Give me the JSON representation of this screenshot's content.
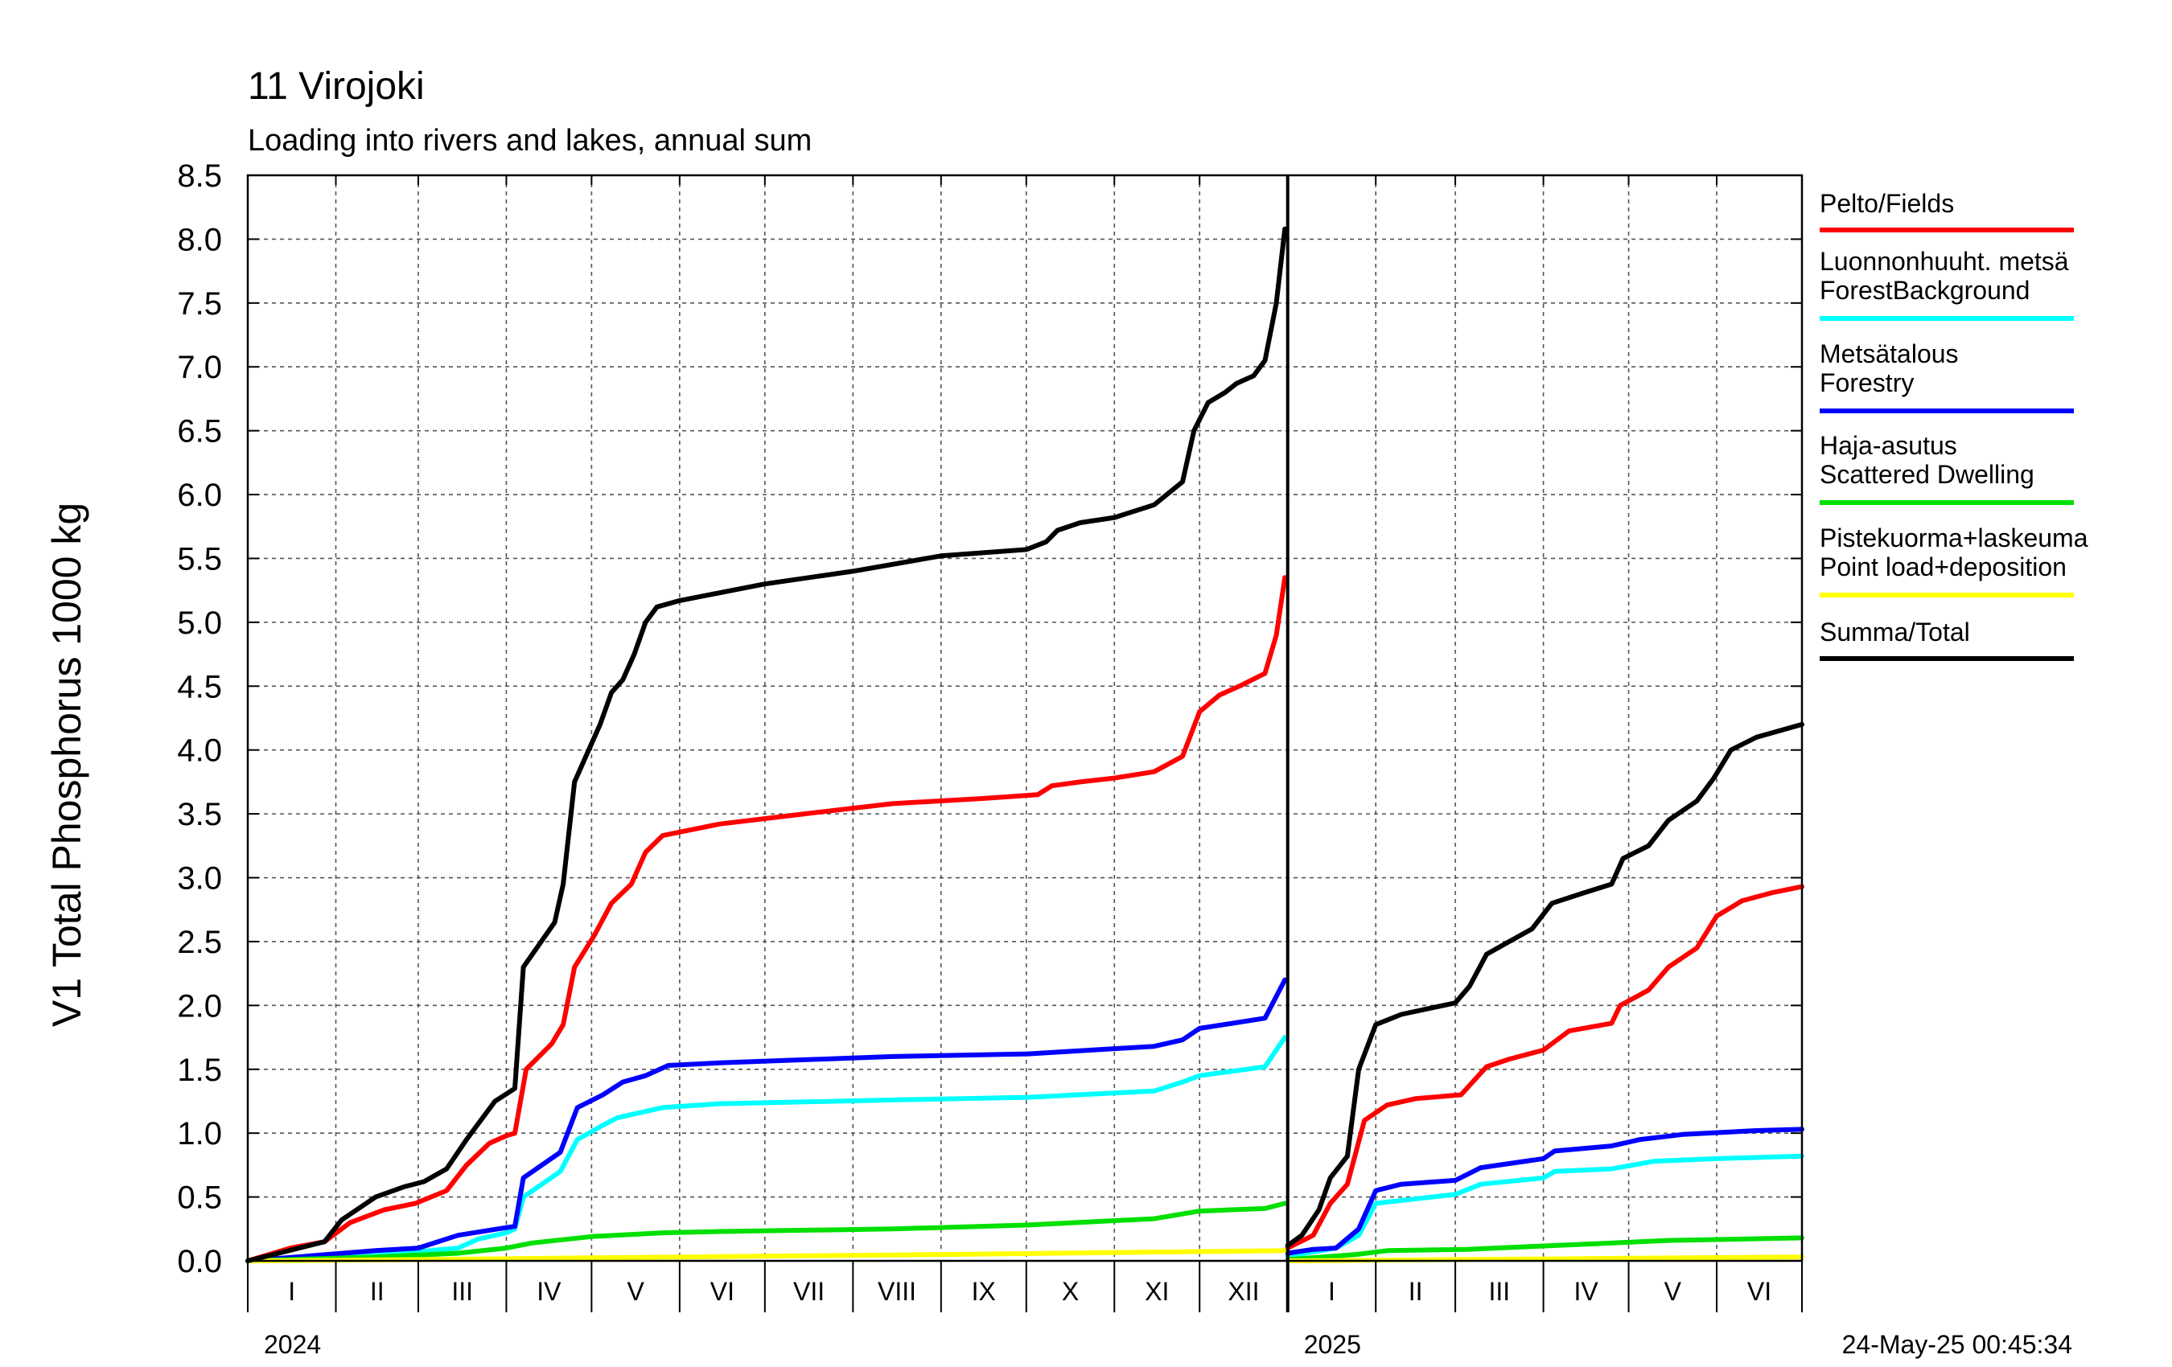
{
  "chart_data": {
    "type": "line",
    "title": "11 Virojoki",
    "subtitle": "Loading into rivers and lakes, annual sum",
    "ylabel": "V1 Total Phosphorus 1000 kg",
    "ylim": [
      0,
      8.5
    ],
    "yticks": [
      "0.0",
      "0.5",
      "1.0",
      "1.5",
      "2.0",
      "2.5",
      "3.0",
      "3.5",
      "4.0",
      "4.5",
      "5.0",
      "5.5",
      "6.0",
      "6.5",
      "7.0",
      "7.5",
      "8.0",
      "8.5"
    ],
    "xlim": [
      "2024-01-01",
      "2025-07-01"
    ],
    "month_labels": [
      "I",
      "II",
      "III",
      "IV",
      "V",
      "VI",
      "VII",
      "VIII",
      "IX",
      "X",
      "XI",
      "XII",
      "I",
      "II",
      "III",
      "IV",
      "V",
      "VI"
    ],
    "year_labels": [
      "2024",
      "2025"
    ],
    "timestamp": "24-May-25 00:45:34",
    "grid": true,
    "legend_position": "right",
    "series": [
      {
        "name": "Pelto/Fields",
        "color": "#ff0000",
        "segments": [
          [
            [
              "2024-01-01",
              0.0
            ],
            [
              "2024-01-16",
              0.1
            ],
            [
              "2024-01-28",
              0.15
            ],
            [
              "2024-02-06",
              0.3
            ],
            [
              "2024-02-18",
              0.4
            ],
            [
              "2024-02-29",
              0.45
            ],
            [
              "2024-03-11",
              0.55
            ],
            [
              "2024-03-18",
              0.75
            ],
            [
              "2024-03-26",
              0.92
            ],
            [
              "2024-04-01",
              0.98
            ],
            [
              "2024-04-04",
              1.0
            ],
            [
              "2024-04-08",
              1.5
            ],
            [
              "2024-04-17",
              1.7
            ],
            [
              "2024-04-21",
              1.85
            ],
            [
              "2024-04-25",
              2.3
            ],
            [
              "2024-05-02",
              2.55
            ],
            [
              "2024-05-08",
              2.8
            ],
            [
              "2024-05-15",
              2.95
            ],
            [
              "2024-05-20",
              3.2
            ],
            [
              "2024-05-26",
              3.33
            ],
            [
              "2024-06-15",
              3.42
            ],
            [
              "2024-07-15",
              3.5
            ],
            [
              "2024-08-15",
              3.58
            ],
            [
              "2024-09-15",
              3.62
            ],
            [
              "2024-10-05",
              3.65
            ],
            [
              "2024-10-10",
              3.72
            ],
            [
              "2024-10-20",
              3.75
            ],
            [
              "2024-11-01",
              3.78
            ],
            [
              "2024-11-15",
              3.83
            ],
            [
              "2024-11-25",
              3.95
            ],
            [
              "2024-12-01",
              4.3
            ],
            [
              "2024-12-08",
              4.43
            ],
            [
              "2024-12-15",
              4.5
            ],
            [
              "2024-12-24",
              4.6
            ],
            [
              "2024-12-28",
              4.9
            ],
            [
              "2024-12-31",
              5.35
            ]
          ],
          [
            [
              "2025-01-01",
              0.1
            ],
            [
              "2025-01-10",
              0.2
            ],
            [
              "2025-01-16",
              0.45
            ],
            [
              "2025-01-22",
              0.6
            ],
            [
              "2025-01-28",
              1.1
            ],
            [
              "2025-02-05",
              1.22
            ],
            [
              "2025-02-15",
              1.27
            ],
            [
              "2025-03-03",
              1.3
            ],
            [
              "2025-03-12",
              1.52
            ],
            [
              "2025-03-20",
              1.58
            ],
            [
              "2025-04-01",
              1.65
            ],
            [
              "2025-04-10",
              1.8
            ],
            [
              "2025-04-25",
              1.86
            ],
            [
              "2025-04-28",
              2.0
            ],
            [
              "2025-05-08",
              2.12
            ],
            [
              "2025-05-15",
              2.3
            ],
            [
              "2025-05-25",
              2.45
            ],
            [
              "2025-06-01",
              2.7
            ],
            [
              "2025-06-10",
              2.82
            ],
            [
              "2025-06-20",
              2.88
            ],
            [
              "2025-07-01",
              2.93
            ]
          ]
        ]
      },
      {
        "name": "Luonnonhuuht. metsä ForestBackground",
        "color": "#00ffff",
        "segments": [
          [
            [
              "2024-01-01",
              0.0
            ],
            [
              "2024-02-15",
              0.04
            ],
            [
              "2024-03-15",
              0.1
            ],
            [
              "2024-03-22",
              0.17
            ],
            [
              "2024-04-01",
              0.22
            ],
            [
              "2024-04-04",
              0.25
            ],
            [
              "2024-04-07",
              0.5
            ],
            [
              "2024-04-20",
              0.7
            ],
            [
              "2024-04-26",
              0.95
            ],
            [
              "2024-05-04",
              1.05
            ],
            [
              "2024-05-10",
              1.12
            ],
            [
              "2024-05-26",
              1.2
            ],
            [
              "2024-06-15",
              1.23
            ],
            [
              "2024-08-15",
              1.26
            ],
            [
              "2024-10-01",
              1.28
            ],
            [
              "2024-11-15",
              1.33
            ],
            [
              "2024-11-25",
              1.4
            ],
            [
              "2024-12-01",
              1.45
            ],
            [
              "2024-12-24",
              1.52
            ],
            [
              "2024-12-31",
              1.75
            ]
          ],
          [
            [
              "2025-01-01",
              0.04
            ],
            [
              "2025-01-10",
              0.07
            ],
            [
              "2025-01-18",
              0.1
            ],
            [
              "2025-01-26",
              0.2
            ],
            [
              "2025-02-01",
              0.45
            ],
            [
              "2025-03-01",
              0.52
            ],
            [
              "2025-03-10",
              0.6
            ],
            [
              "2025-04-01",
              0.65
            ],
            [
              "2025-04-05",
              0.7
            ],
            [
              "2025-04-25",
              0.72
            ],
            [
              "2025-05-10",
              0.78
            ],
            [
              "2025-06-01",
              0.8
            ],
            [
              "2025-07-01",
              0.82
            ]
          ]
        ]
      },
      {
        "name": "Metsätalous Forestry",
        "color": "#0000ff",
        "segments": [
          [
            [
              "2024-01-01",
              0.0
            ],
            [
              "2024-02-15",
              0.08
            ],
            [
              "2024-03-01",
              0.1
            ],
            [
              "2024-03-15",
              0.2
            ],
            [
              "2024-03-29",
              0.25
            ],
            [
              "2024-04-04",
              0.27
            ],
            [
              "2024-04-07",
              0.65
            ],
            [
              "2024-04-20",
              0.85
            ],
            [
              "2024-04-26",
              1.2
            ],
            [
              "2024-05-05",
              1.3
            ],
            [
              "2024-05-12",
              1.4
            ],
            [
              "2024-05-20",
              1.45
            ],
            [
              "2024-05-28",
              1.53
            ],
            [
              "2024-06-15",
              1.55
            ],
            [
              "2024-08-15",
              1.6
            ],
            [
              "2024-10-01",
              1.62
            ],
            [
              "2024-11-15",
              1.68
            ],
            [
              "2024-11-25",
              1.73
            ],
            [
              "2024-12-01",
              1.82
            ],
            [
              "2024-12-24",
              1.9
            ],
            [
              "2024-12-31",
              2.2
            ]
          ],
          [
            [
              "2025-01-01",
              0.06
            ],
            [
              "2025-01-10",
              0.09
            ],
            [
              "2025-01-18",
              0.1
            ],
            [
              "2025-01-26",
              0.25
            ],
            [
              "2025-02-01",
              0.55
            ],
            [
              "2025-02-10",
              0.6
            ],
            [
              "2025-03-01",
              0.63
            ],
            [
              "2025-03-10",
              0.73
            ],
            [
              "2025-04-01",
              0.8
            ],
            [
              "2025-04-05",
              0.86
            ],
            [
              "2025-04-25",
              0.9
            ],
            [
              "2025-05-05",
              0.95
            ],
            [
              "2025-05-20",
              0.99
            ],
            [
              "2025-06-15",
              1.02
            ],
            [
              "2025-07-01",
              1.03
            ]
          ]
        ]
      },
      {
        "name": "Haja-asutus Scattered Dwelling",
        "color": "#00e000",
        "segments": [
          [
            [
              "2024-01-01",
              0.0
            ],
            [
              "2024-02-15",
              0.03
            ],
            [
              "2024-03-15",
              0.06
            ],
            [
              "2024-04-01",
              0.1
            ],
            [
              "2024-04-10",
              0.14
            ],
            [
              "2024-05-01",
              0.19
            ],
            [
              "2024-05-26",
              0.22
            ],
            [
              "2024-06-15",
              0.23
            ],
            [
              "2024-08-15",
              0.25
            ],
            [
              "2024-10-01",
              0.28
            ],
            [
              "2024-11-15",
              0.33
            ],
            [
              "2024-12-01",
              0.39
            ],
            [
              "2024-12-24",
              0.41
            ],
            [
              "2024-12-31",
              0.45
            ]
          ],
          [
            [
              "2025-01-01",
              0.01
            ],
            [
              "2025-01-25",
              0.05
            ],
            [
              "2025-02-05",
              0.08
            ],
            [
              "2025-03-05",
              0.09
            ],
            [
              "2025-03-15",
              0.1
            ],
            [
              "2025-04-15",
              0.13
            ],
            [
              "2025-05-15",
              0.16
            ],
            [
              "2025-07-01",
              0.18
            ]
          ]
        ]
      },
      {
        "name": "Pistekuorma+laskeuma Point load+deposition",
        "color": "#ffff00",
        "segments": [
          [
            [
              "2024-01-01",
              0.0
            ],
            [
              "2024-03-01",
              0.01
            ],
            [
              "2024-06-01",
              0.03
            ],
            [
              "2024-09-01",
              0.05
            ],
            [
              "2024-12-31",
              0.08
            ]
          ],
          [
            [
              "2025-01-01",
              0.0
            ],
            [
              "2025-03-01",
              0.01
            ],
            [
              "2025-05-01",
              0.02
            ],
            [
              "2025-07-01",
              0.03
            ]
          ]
        ]
      },
      {
        "name": "Summa/Total",
        "color": "#000000",
        "segments": [
          [
            [
              "2024-01-01",
              0.0
            ],
            [
              "2024-01-10",
              0.05
            ],
            [
              "2024-01-28",
              0.15
            ],
            [
              "2024-02-03",
              0.32
            ],
            [
              "2024-02-15",
              0.5
            ],
            [
              "2024-02-25",
              0.58
            ],
            [
              "2024-03-03",
              0.62
            ],
            [
              "2024-03-11",
              0.72
            ],
            [
              "2024-03-18",
              0.95
            ],
            [
              "2024-03-23",
              1.1
            ],
            [
              "2024-03-28",
              1.25
            ],
            [
              "2024-04-04",
              1.35
            ],
            [
              "2024-04-07",
              2.3
            ],
            [
              "2024-04-18",
              2.65
            ],
            [
              "2024-04-21",
              2.95
            ],
            [
              "2024-04-25",
              3.75
            ],
            [
              "2024-04-29",
              3.95
            ],
            [
              "2024-05-04",
              4.2
            ],
            [
              "2024-05-08",
              4.45
            ],
            [
              "2024-05-12",
              4.55
            ],
            [
              "2024-05-16",
              4.75
            ],
            [
              "2024-05-20",
              5.0
            ],
            [
              "2024-05-24",
              5.12
            ],
            [
              "2024-06-01",
              5.17
            ],
            [
              "2024-07-01",
              5.3
            ],
            [
              "2024-08-01",
              5.4
            ],
            [
              "2024-09-01",
              5.52
            ],
            [
              "2024-10-01",
              5.57
            ],
            [
              "2024-10-08",
              5.63
            ],
            [
              "2024-10-12",
              5.72
            ],
            [
              "2024-10-20",
              5.78
            ],
            [
              "2024-11-01",
              5.82
            ],
            [
              "2024-11-15",
              5.92
            ],
            [
              "2024-11-25",
              6.1
            ],
            [
              "2024-11-29",
              6.5
            ],
            [
              "2024-12-04",
              6.72
            ],
            [
              "2024-12-10",
              6.8
            ],
            [
              "2024-12-14",
              6.87
            ],
            [
              "2024-12-20",
              6.93
            ],
            [
              "2024-12-24",
              7.05
            ],
            [
              "2024-12-28",
              7.5
            ],
            [
              "2024-12-31",
              8.08
            ]
          ],
          [
            [
              "2025-01-01",
              0.12
            ],
            [
              "2025-01-06",
              0.2
            ],
            [
              "2025-01-12",
              0.4
            ],
            [
              "2025-01-16",
              0.65
            ],
            [
              "2025-01-22",
              0.82
            ],
            [
              "2025-01-26",
              1.5
            ],
            [
              "2025-02-01",
              1.85
            ],
            [
              "2025-02-10",
              1.93
            ],
            [
              "2025-03-01",
              2.02
            ],
            [
              "2025-03-06",
              2.15
            ],
            [
              "2025-03-12",
              2.4
            ],
            [
              "2025-03-20",
              2.5
            ],
            [
              "2025-03-28",
              2.6
            ],
            [
              "2025-04-04",
              2.8
            ],
            [
              "2025-04-15",
              2.88
            ],
            [
              "2025-04-25",
              2.95
            ],
            [
              "2025-04-29",
              3.15
            ],
            [
              "2025-05-08",
              3.25
            ],
            [
              "2025-05-15",
              3.45
            ],
            [
              "2025-05-25",
              3.6
            ],
            [
              "2025-05-31",
              3.78
            ],
            [
              "2025-06-06",
              4.0
            ],
            [
              "2025-06-15",
              4.1
            ],
            [
              "2025-07-01",
              4.2
            ]
          ]
        ]
      }
    ],
    "legend": [
      {
        "line1": "Pelto/Fields",
        "line2": "",
        "color": "#ff0000"
      },
      {
        "line1": "Luonnonhuuht. metsä",
        "line2": "ForestBackground",
        "color": "#00ffff"
      },
      {
        "line1": "Metsätalous",
        "line2": "Forestry",
        "color": "#0000ff"
      },
      {
        "line1": "Haja-asutus",
        "line2": "Scattered Dwelling",
        "color": "#00e000"
      },
      {
        "line1": "Pistekuorma+laskeuma",
        "line2": "Point load+deposition",
        "color": "#ffff00"
      },
      {
        "line1": "Summa/Total",
        "line2": "",
        "color": "#000000"
      }
    ]
  }
}
